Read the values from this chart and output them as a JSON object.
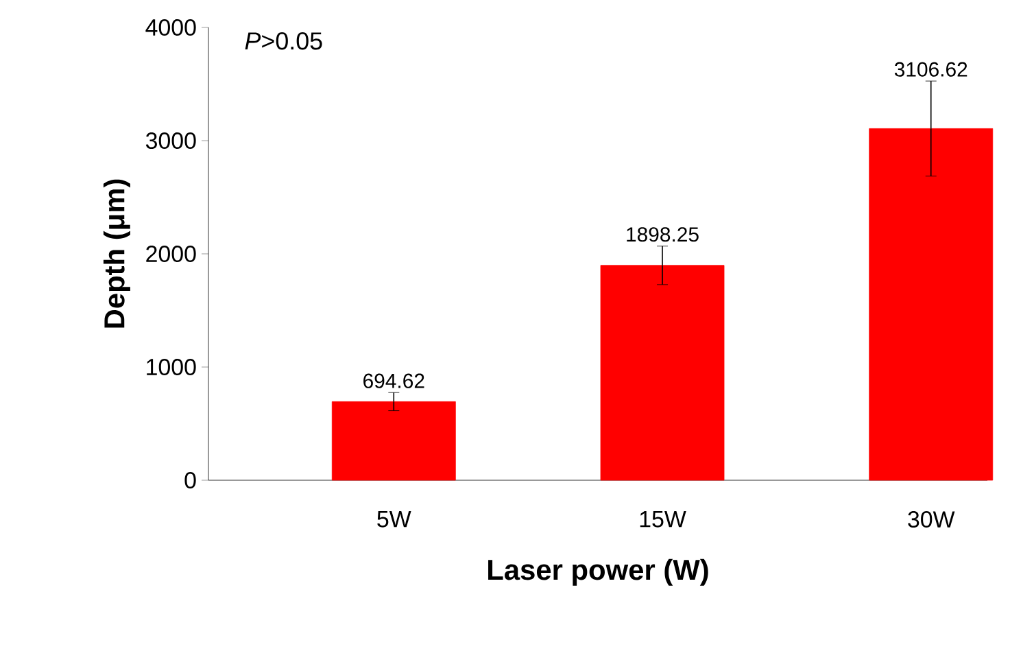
{
  "chart_data": {
    "type": "bar",
    "xlabel": "Laser power (W)",
    "ylabel": "Depth (μm)",
    "categories": [
      "5W",
      "15W",
      "30W"
    ],
    "values": [
      694.62,
      1898.25,
      3106.62
    ],
    "errors": [
      80,
      170,
      420
    ],
    "color": "#ff0000",
    "data_labels": true,
    "ylim": [
      0,
      4000
    ],
    "yticks": [
      0,
      1000,
      2000,
      3000,
      4000
    ],
    "annotations": [
      "*P*>0.05"
    ]
  }
}
